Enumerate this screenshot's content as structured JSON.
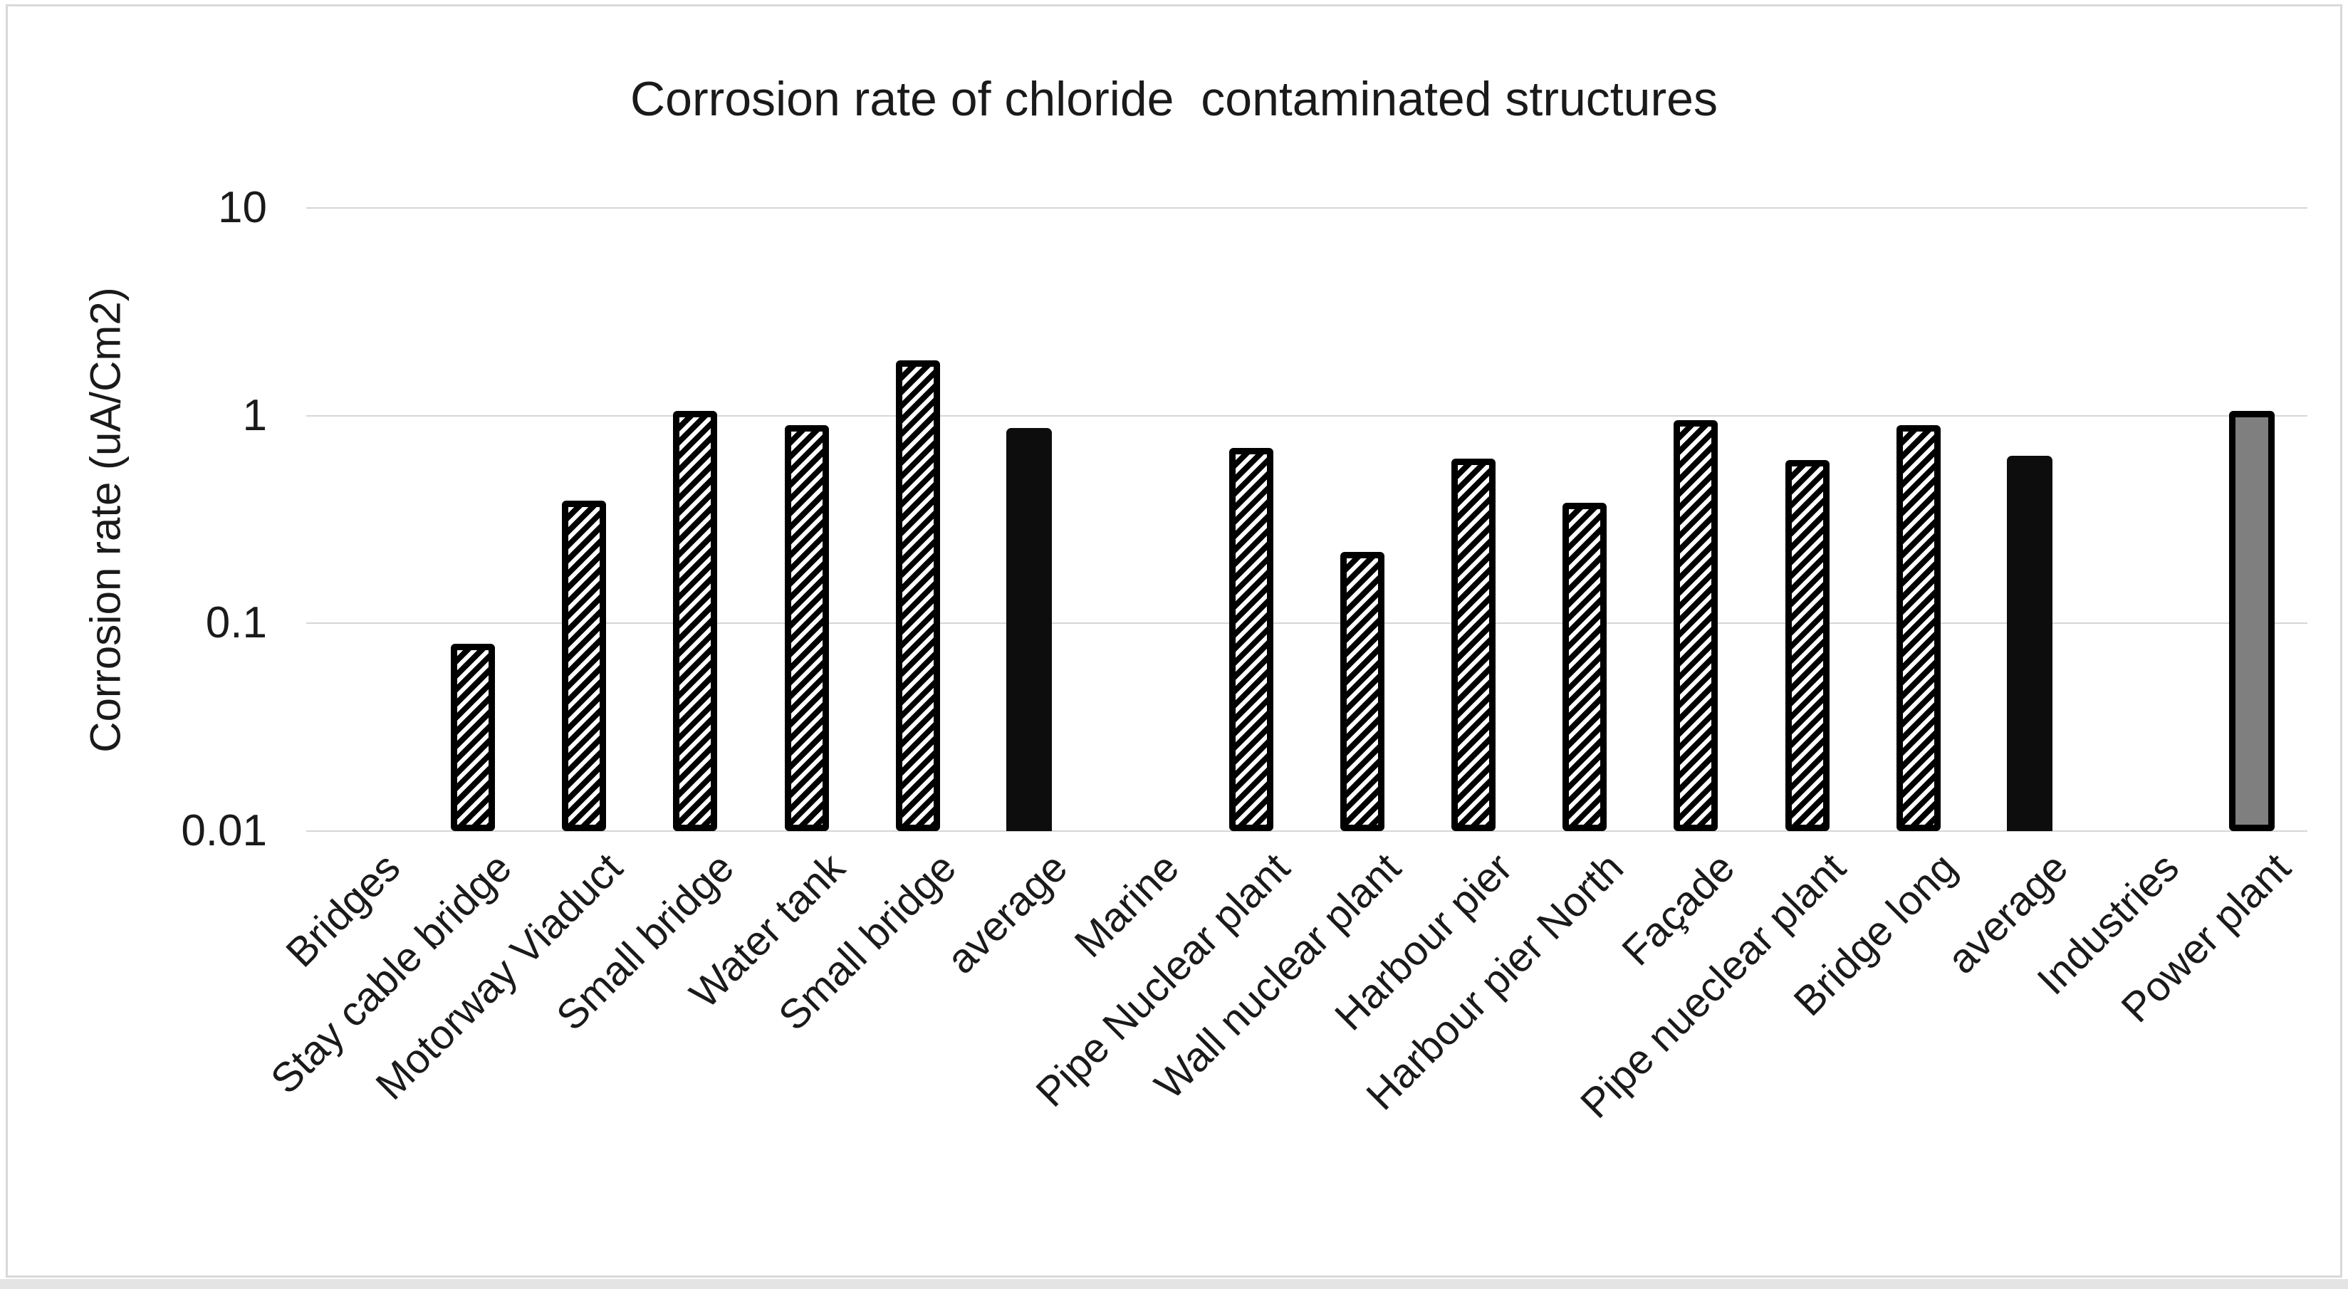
{
  "frame": {
    "border_color": "#d9d9d9",
    "background": "#ffffff"
  },
  "chart_data": {
    "type": "bar",
    "title": "Corrosion rate of chloride  contaminated structures",
    "xlabel": "",
    "ylabel": "Corrosion rate (uA/Cm2)",
    "y_scale": "log",
    "ylim": [
      0.01,
      10
    ],
    "grid": "horizontal",
    "legend": "none",
    "y_ticks": [
      {
        "label": "10",
        "value": 10
      },
      {
        "label": "1",
        "value": 1
      },
      {
        "label": "0.1",
        "value": 0.1
      },
      {
        "label": "0.01",
        "value": 0.01
      }
    ],
    "categories": [
      "Bridges",
      "Stay cable bridge",
      "Motorway Viaduct",
      "Small bridge",
      "Water tank",
      "Small bridge",
      "average",
      "Marine",
      "Pipe Nuclear plant",
      "Wall nuclear plant",
      "Harbour pier",
      "Harbour pier North",
      "Façade",
      "Pipe nueclear plant",
      "Bridge long",
      "average",
      "Industries",
      "Power plant"
    ],
    "values": [
      null,
      0.08,
      0.39,
      1.05,
      0.9,
      1.85,
      0.87,
      null,
      0.7,
      0.22,
      0.62,
      0.38,
      0.95,
      0.61,
      0.9,
      0.64,
      null,
      1.05
    ],
    "bar_styles": [
      null,
      "hatch",
      "hatch",
      "hatch",
      "hatch",
      "hatch",
      "solid-black",
      null,
      "hatch",
      "hatch",
      "hatch",
      "hatch",
      "hatch",
      "hatch",
      "hatch",
      "solid-black",
      null,
      "solid-gray"
    ],
    "colors": {
      "hatch_stripe": "#000000",
      "hatch_background": "#ffffff",
      "solid_black": "#0d0d0d",
      "solid_gray": "#7f7f7f",
      "bar_border": "#000000",
      "gridline": "#d6d6d6",
      "text": "#1a1a1a"
    }
  }
}
